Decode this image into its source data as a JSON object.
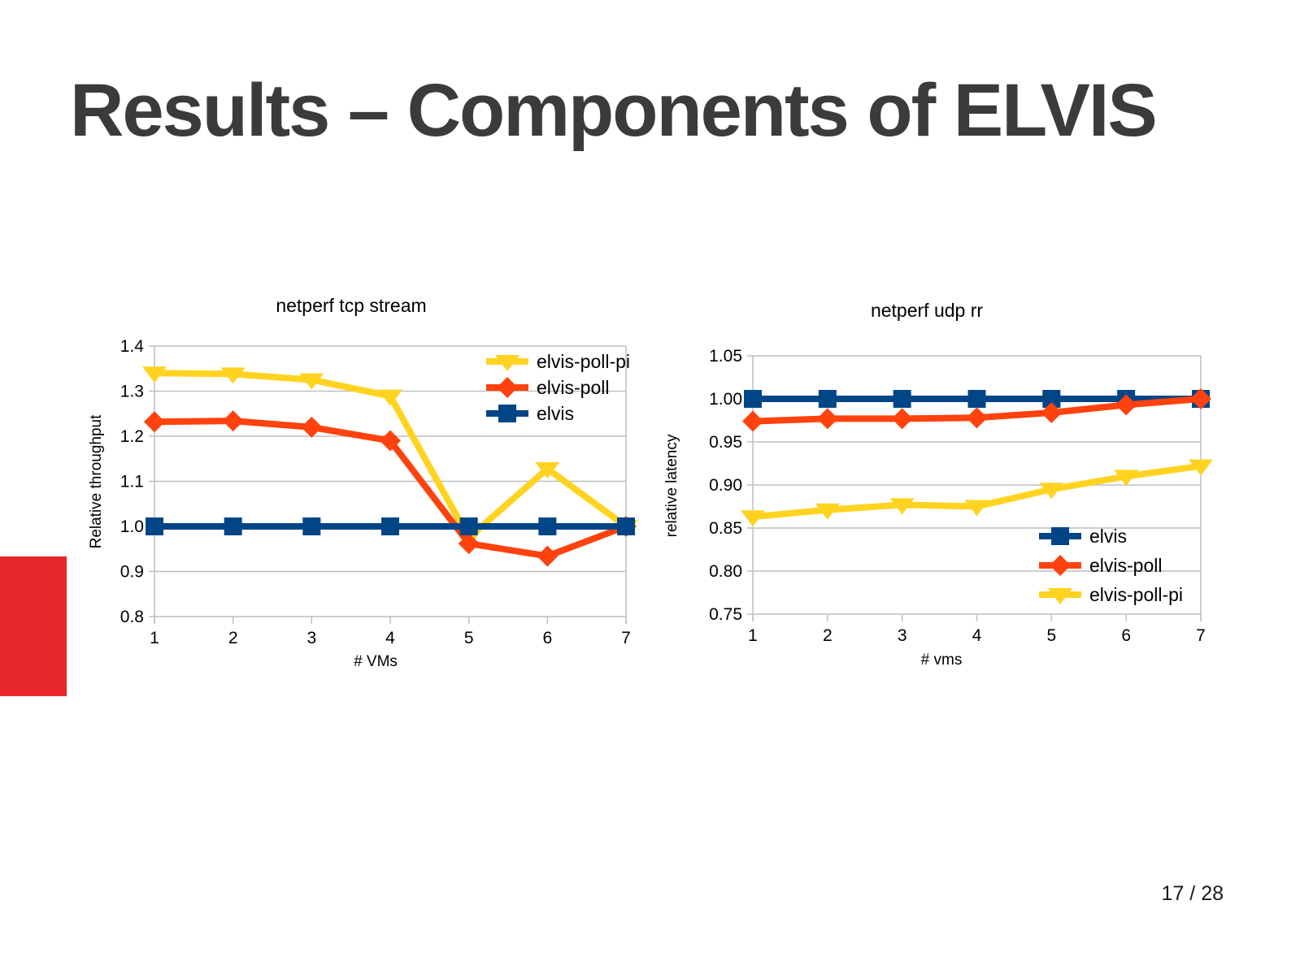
{
  "slide": {
    "title": "Results – Components of ELVIS",
    "page_number": "17 / 28",
    "accent_color": "#e8262d"
  },
  "chart_data": [
    {
      "type": "line",
      "id": "netperf-tcp-stream",
      "title": "netperf tcp stream",
      "xlabel": "# VMs",
      "ylabel": "Relative throughput",
      "x": [
        1,
        2,
        3,
        4,
        5,
        6,
        7
      ],
      "ylim": [
        0.8,
        1.4
      ],
      "yticks": [
        0.8,
        0.9,
        1.0,
        1.1,
        1.2,
        1.3,
        1.4
      ],
      "ytick_labels": [
        "0.8",
        "0.9",
        "1.0",
        "1.1",
        "1.2",
        "1.3",
        "1.4"
      ],
      "grid": "horizontal",
      "legend_position": "top-right",
      "legend_order": [
        "elvis-poll-pi",
        "elvis-poll",
        "elvis"
      ],
      "series": [
        {
          "name": "elvis-poll-pi",
          "color": "#FFD320",
          "marker": "triangle-down",
          "values": [
            1.34,
            1.338,
            1.325,
            1.289,
            0.975,
            1.128,
            1.0
          ]
        },
        {
          "name": "elvis-poll",
          "color": "#FF420E",
          "marker": "diamond",
          "values": [
            1.232,
            1.234,
            1.22,
            1.19,
            0.962,
            0.934,
            1.0
          ]
        },
        {
          "name": "elvis",
          "color": "#004586",
          "marker": "square",
          "values": [
            1.0,
            1.0,
            1.0,
            1.0,
            1.0,
            1.0,
            1.0
          ]
        }
      ]
    },
    {
      "type": "line",
      "id": "netperf-udp-rr",
      "title": "netperf udp rr",
      "xlabel": "# vms",
      "ylabel": "relative latency",
      "x": [
        1,
        2,
        3,
        4,
        5,
        6,
        7
      ],
      "ylim": [
        0.75,
        1.05
      ],
      "yticks": [
        0.75,
        0.8,
        0.85,
        0.9,
        0.95,
        1.0,
        1.05
      ],
      "ytick_labels": [
        "0.75",
        "0.80",
        "0.85",
        "0.90",
        "0.95",
        "1.00",
        "1.05"
      ],
      "grid": "horizontal",
      "legend_position": "bottom-right",
      "legend_order": [
        "elvis",
        "elvis-poll",
        "elvis-poll-pi"
      ],
      "series": [
        {
          "name": "elvis",
          "color": "#004586",
          "marker": "square",
          "values": [
            1.0,
            1.0,
            1.0,
            1.0,
            1.0,
            1.0,
            1.0
          ]
        },
        {
          "name": "elvis-poll-pi",
          "color": "#FFD320",
          "marker": "triangle-down",
          "values": [
            0.863,
            0.871,
            0.877,
            0.875,
            0.895,
            0.91,
            0.922
          ]
        },
        {
          "name": "elvis-poll",
          "color": "#FF420E",
          "marker": "diamond",
          "values": [
            0.974,
            0.977,
            0.977,
            0.978,
            0.984,
            0.993,
            1.0
          ]
        }
      ]
    }
  ]
}
